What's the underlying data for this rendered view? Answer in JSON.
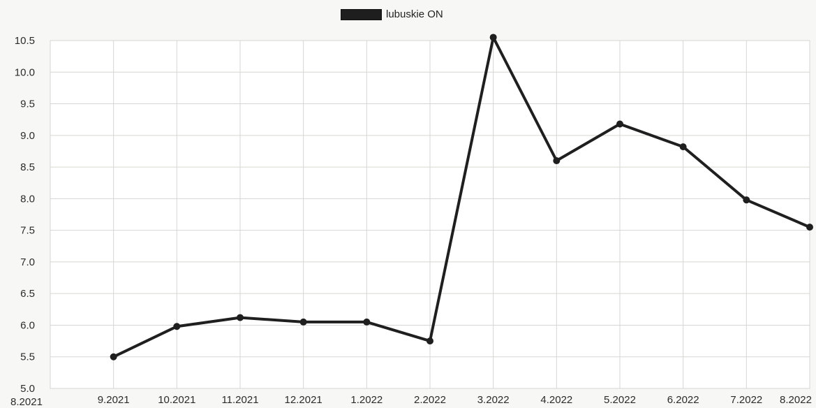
{
  "chart_data": {
    "type": "line",
    "title": "",
    "xlabel": "",
    "ylabel": "",
    "categories": [
      "8.2021",
      "9.2021",
      "10.2021",
      "11.2021",
      "12.2021",
      "1.2022",
      "2.2022",
      "3.2022",
      "4.2022",
      "5.2022",
      "6.2022",
      "7.2022",
      "8.2022"
    ],
    "series": [
      {
        "name": "lubuskie ON",
        "values": [
          null,
          5.5,
          5.98,
          6.12,
          6.05,
          6.05,
          5.75,
          10.55,
          8.6,
          9.18,
          8.82,
          7.98,
          7.55
        ]
      }
    ],
    "y_ticks": [
      "5.0",
      "5.5",
      "6.0",
      "6.5",
      "7.0",
      "7.5",
      "8.0",
      "8.5",
      "9.0",
      "9.5",
      "10.0",
      "10.5"
    ],
    "ylim": [
      5.0,
      10.5
    ],
    "grid": true,
    "legend": "top-center",
    "colors": {
      "line": "#1f1f1f",
      "grid": "#d6d6d2",
      "axis_text": "#2b2b2b",
      "background": "#f7f7f5"
    }
  }
}
